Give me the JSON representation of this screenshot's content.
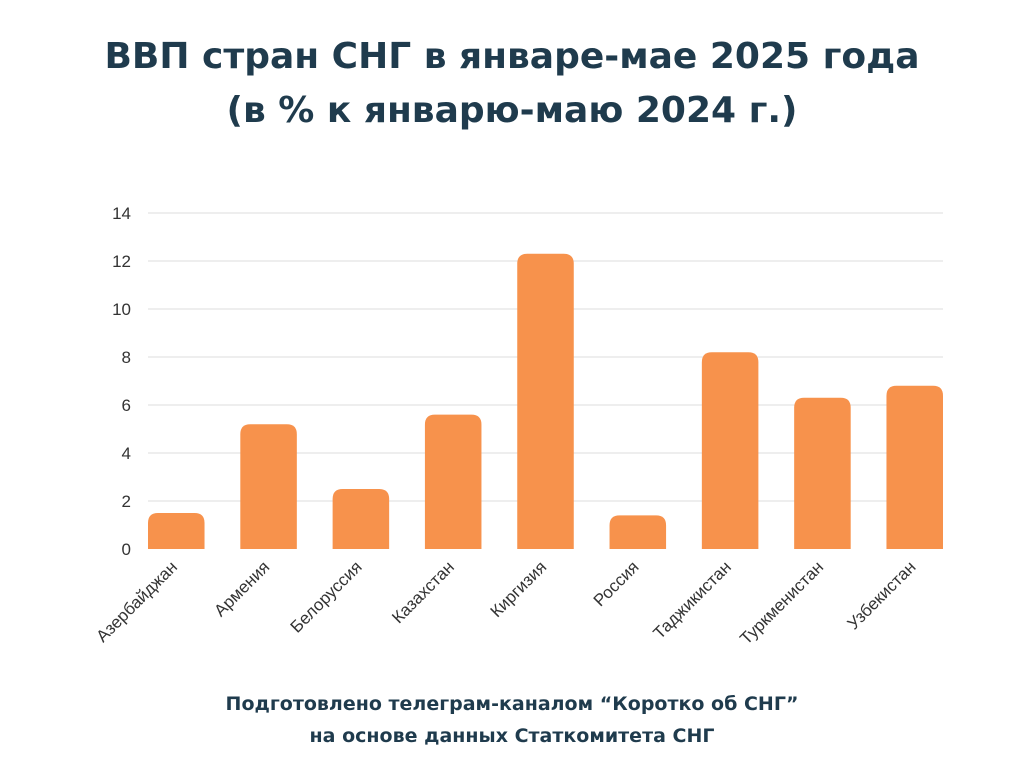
{
  "colors": {
    "title": "#1f3b4d",
    "bar": "#f7924c",
    "grid": "#dddddd",
    "axis_text": "#333333",
    "footer": "#1f3b4d"
  },
  "chart_data": {
    "type": "bar",
    "title": "ВВП стран СНГ в январе-мае 2025 года",
    "subtitle": "(в % к январю-маю 2024 г.)",
    "xlabel": "",
    "ylabel": "",
    "ylim": [
      0,
      14
    ],
    "yticks": [
      0,
      2,
      4,
      6,
      8,
      10,
      12,
      14
    ],
    "grid": true,
    "legend": "none",
    "categories": [
      "Азербайджан",
      "Армения",
      "Белоруссия",
      "Казахстан",
      "Киргизия",
      "Россия",
      "Таджикистан",
      "Туркменистан",
      "Узбекистан"
    ],
    "values": [
      1.5,
      5.2,
      2.5,
      5.6,
      12.3,
      1.4,
      8.2,
      6.3,
      6.8
    ]
  },
  "footer": {
    "line1": "Подготовлено телеграм-каналом “Коротко об СНГ”",
    "line2": "на основе данных Статкомитета СНГ"
  }
}
